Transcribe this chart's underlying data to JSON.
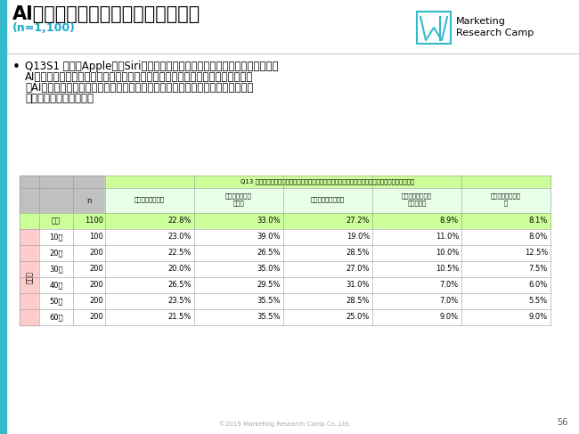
{
  "title": "AIを使用したスマートフォンの機能",
  "subtitle": "(n=1,100)",
  "title_color": "#1AABCC",
  "subtitle_color": "#1AABCC",
  "logo_text1": "Marketing",
  "logo_text2": "Research Camp",
  "question_text_line1": "Q13S1 昨今、Appleの「Siri」などのようにスマートフォンにも「人工知能（",
  "question_text_line2": "AI）」が搭載され、さまざまな機能を提供しています。以下のような「人工知能",
  "question_text_line3": "（AI）」を使用したスマートフォンの機能について、あなたの考えにあてはまる",
  "question_text_line4": "ものをお選びください。",
  "table_header_main": "Q13 人物や風景などにあわせて自動的にカメラの設定を変えてくれる「カメラコントロール機能」",
  "sh_col_labels": [
    "この機能はほしい",
    "この機能はやや\nほしい",
    "どちらともいえない",
    "この機能はあまり\nほしくない",
    "この機能はいらな\nい"
  ],
  "rows": [
    {
      "label": "全体",
      "group": "zentai",
      "n": "1100",
      "vals": [
        "22.8%",
        "33.0%",
        "27.2%",
        "8.9%",
        "8.1%"
      ]
    },
    {
      "label": "10代",
      "group": "nendai",
      "n": "100",
      "vals": [
        "23.0%",
        "39.0%",
        "19.0%",
        "11.0%",
        "8.0%"
      ]
    },
    {
      "label": "20代",
      "group": "nendai",
      "n": "200",
      "vals": [
        "22.5%",
        "26.5%",
        "28.5%",
        "10.0%",
        "12.5%"
      ]
    },
    {
      "label": "30代",
      "group": "nendai",
      "n": "200",
      "vals": [
        "20.0%",
        "35.0%",
        "27.0%",
        "10.5%",
        "7.5%"
      ]
    },
    {
      "label": "40代",
      "group": "nendai",
      "n": "200",
      "vals": [
        "26.5%",
        "29.5%",
        "31.0%",
        "7.0%",
        "6.0%"
      ]
    },
    {
      "label": "50代",
      "group": "nendai",
      "n": "200",
      "vals": [
        "23.5%",
        "35.5%",
        "28.5%",
        "7.0%",
        "5.5%"
      ]
    },
    {
      "label": "60代",
      "group": "nendai",
      "n": "200",
      "vals": [
        "21.5%",
        "35.5%",
        "25.0%",
        "9.0%",
        "9.0%"
      ]
    }
  ],
  "color_zentai_bg": "#CCFF99",
  "color_nendai_bg": "#FFCCCC",
  "color_header_green": "#CCFF99",
  "color_subheader_green": "#E8FFE8",
  "color_gray": "#C0C0C0",
  "color_border": "#999999",
  "bg_color": "#FFFFFF",
  "left_bar_color": "#33BBCC",
  "footer_text": "©2019 Marketing Research Camp Co.,Ltd.",
  "page_number": "56",
  "nendai_label": "年代別"
}
